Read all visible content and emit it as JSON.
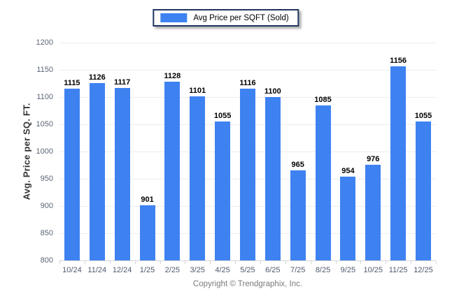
{
  "legend": {
    "label": "Avg Price per SQFT (Sold)",
    "swatch_color": "#3e82f1",
    "border_color": "#1f3661"
  },
  "footer": {
    "copyright": "Copyright © Trendgraphix, Inc."
  },
  "chart_data": {
    "type": "bar",
    "title": "",
    "xlabel": "",
    "ylabel": "Avg. Price per SQ. FT.",
    "legend_entries": [
      "Avg Price per SQFT (Sold)"
    ],
    "legend_position": "top-center",
    "grid": true,
    "categories": [
      "10/24",
      "11/24",
      "12/24",
      "1/25",
      "2/25",
      "3/25",
      "4/25",
      "5/25",
      "6/25",
      "7/25",
      "8/25",
      "9/25",
      "10/25",
      "11/25",
      "12/25"
    ],
    "values": [
      1115,
      1126,
      1117,
      901,
      1128,
      1101,
      1055,
      1116,
      1100,
      965,
      1085,
      954,
      976,
      1156,
      1055
    ],
    "ylim": [
      800,
      1200
    ],
    "yticks": [
      800,
      850,
      900,
      950,
      1000,
      1050,
      1100,
      1150,
      1200
    ],
    "bar_color": "#3e82f1",
    "value_labels": true
  }
}
